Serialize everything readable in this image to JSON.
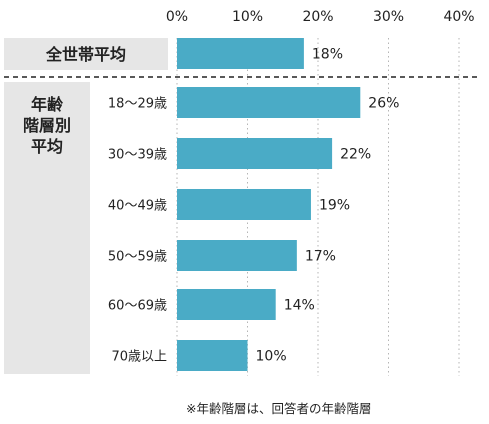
{
  "chart_data": {
    "type": "bar",
    "orientation": "horizontal",
    "xlim": [
      0,
      40
    ],
    "x_ticks": [
      "0%",
      "10%",
      "20%",
      "30%",
      "40%"
    ],
    "grid": "vertical dotted",
    "bar_color": "#4aabc6",
    "group_box_color": "#e6e6e6",
    "groups": [
      {
        "label": "全世帯平均",
        "categories": [
          ""
        ],
        "values": [
          18
        ],
        "value_labels": [
          "18%"
        ]
      },
      {
        "label_lines": [
          "年齢",
          "階層別",
          "平均"
        ],
        "categories": [
          "18～29歳",
          "30～39歳",
          "40～49歳",
          "50～59歳",
          "60～69歳",
          "70歳以上"
        ],
        "values": [
          26,
          22,
          19,
          17,
          14,
          10
        ],
        "value_labels": [
          "26%",
          "22%",
          "19%",
          "17%",
          "14%",
          "10%"
        ]
      }
    ],
    "footnote": "※年齢階層は、回答者の年齢階層"
  }
}
